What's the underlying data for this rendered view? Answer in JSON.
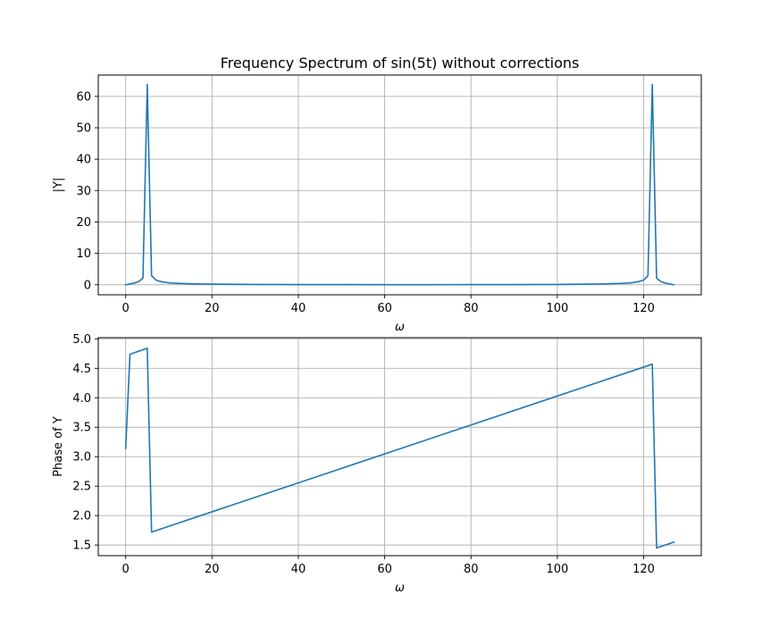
{
  "figure": {
    "background": "#ffffff"
  },
  "chart_data": [
    {
      "type": "line",
      "title": "Frequency Spectrum of sin(5t) without corrections",
      "xlabel": "ω",
      "ylabel": "|Y|",
      "xlim": [
        -6.35,
        133.35
      ],
      "ylim": [
        -3.2,
        66.8
      ],
      "xticks": [
        0,
        20,
        40,
        60,
        80,
        100,
        120
      ],
      "xtick_labels": [
        "0",
        "20",
        "40",
        "60",
        "80",
        "100",
        "120"
      ],
      "yticks": [
        0,
        10,
        20,
        30,
        40,
        50,
        60
      ],
      "ytick_labels": [
        "0",
        "10",
        "20",
        "30",
        "40",
        "50",
        "60"
      ],
      "grid": true,
      "series": [
        {
          "color": "#1f77b4",
          "x": [
            0,
            1,
            2,
            3,
            4,
            5,
            6,
            7,
            8,
            9,
            10,
            12,
            15,
            20,
            30,
            40,
            50,
            60,
            64,
            70,
            80,
            90,
            100,
            110,
            115,
            117,
            118,
            119,
            120,
            121,
            122,
            123,
            124,
            125,
            126,
            127
          ],
          "y": [
            0,
            0.25,
            0.55,
            1.0,
            2.1,
            63.8,
            2.9,
            1.5,
            1.05,
            0.8,
            0.6,
            0.45,
            0.3,
            0.2,
            0.1,
            0.06,
            0.04,
            0.03,
            0.02,
            0.03,
            0.04,
            0.06,
            0.1,
            0.25,
            0.45,
            0.6,
            0.8,
            1.05,
            1.5,
            2.9,
            63.8,
            2.1,
            1.0,
            0.55,
            0.25,
            0
          ]
        }
      ]
    },
    {
      "type": "line",
      "xlabel": "ω",
      "ylabel": "Phase of Y",
      "xlim": [
        -6.35,
        133.35
      ],
      "ylim": [
        1.32,
        5.02
      ],
      "xticks": [
        0,
        20,
        40,
        60,
        80,
        100,
        120
      ],
      "xtick_labels": [
        "0",
        "20",
        "40",
        "60",
        "80",
        "100",
        "120"
      ],
      "yticks": [
        1.5,
        2.0,
        2.5,
        3.0,
        3.5,
        4.0,
        4.5,
        5.0
      ],
      "ytick_labels": [
        "1.5",
        "2.0",
        "2.5",
        "3.0",
        "3.5",
        "4.0",
        "4.5",
        "5.0"
      ],
      "grid": true,
      "series": [
        {
          "color": "#1f77b4",
          "x": [
            0,
            1,
            5,
            6,
            122,
            123,
            127
          ],
          "y": [
            3.14,
            4.74,
            4.84,
            1.72,
            4.57,
            1.45,
            1.55
          ]
        }
      ]
    }
  ]
}
